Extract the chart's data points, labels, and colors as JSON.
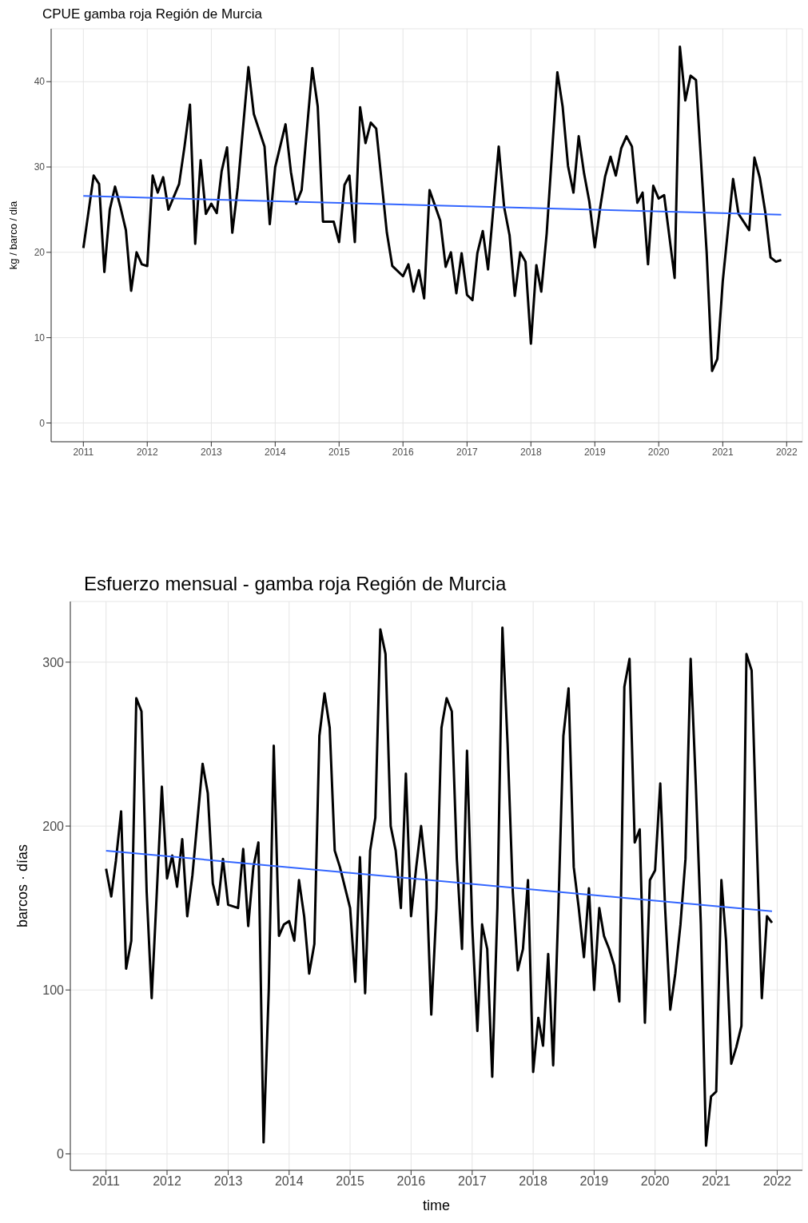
{
  "chart_data": [
    {
      "type": "line",
      "title": "CPUE gamba roja Región de Murcia",
      "ylabel": "kg / barco / dia",
      "xlim": [
        "2010-07",
        "2022-04"
      ],
      "ylim": [
        -2.2,
        46.2
      ],
      "xticks": [
        "2011",
        "2012",
        "2013",
        "2014",
        "2015",
        "2016",
        "2017",
        "2018",
        "2019",
        "2020",
        "2021",
        "2022"
      ],
      "yticks": [
        0,
        10,
        20,
        30,
        40
      ],
      "grid": true,
      "series": [
        {
          "color": "#000000",
          "x": [
            "2011-01",
            "2011-03",
            "2011-04",
            "2011-05",
            "2011-06",
            "2011-07",
            "2011-08",
            "2011-09",
            "2011-10",
            "2011-11",
            "2011-12",
            "2012-01",
            "2012-02",
            "2012-03",
            "2012-04",
            "2012-05",
            "2012-07",
            "2012-08",
            "2012-09",
            "2012-10",
            "2012-11",
            "2012-12",
            "2013-01",
            "2013-02",
            "2013-03",
            "2013-04",
            "2013-05",
            "2013-06",
            "2013-08",
            "2013-09",
            "2013-11",
            "2013-12",
            "2014-01",
            "2014-03",
            "2014-04",
            "2014-05",
            "2014-06",
            "2014-08",
            "2014-09",
            "2014-10",
            "2014-12",
            "2015-01",
            "2015-02",
            "2015-03",
            "2015-04",
            "2015-05",
            "2015-06",
            "2015-07",
            "2015-08",
            "2015-10",
            "2015-11",
            "2016-01",
            "2016-02",
            "2016-03",
            "2016-04",
            "2016-05",
            "2016-06",
            "2016-08",
            "2016-09",
            "2016-10",
            "2016-11",
            "2016-12",
            "2017-01",
            "2017-02",
            "2017-03",
            "2017-04",
            "2017-05",
            "2017-07",
            "2017-08",
            "2017-09",
            "2017-10",
            "2017-11",
            "2017-12",
            "2018-01",
            "2018-02",
            "2018-03",
            "2018-04",
            "2018-06",
            "2018-07",
            "2018-08",
            "2018-09",
            "2018-10",
            "2018-11",
            "2018-12",
            "2019-01",
            "2019-02",
            "2019-03",
            "2019-04",
            "2019-05",
            "2019-06",
            "2019-07",
            "2019-08",
            "2019-09",
            "2019-10",
            "2019-11",
            "2019-12",
            "2020-01",
            "2020-02",
            "2020-04",
            "2020-05",
            "2020-06",
            "2020-07",
            "2020-08",
            "2020-10",
            "2020-11",
            "2020-12",
            "2021-01",
            "2021-03",
            "2021-04",
            "2021-06",
            "2021-07",
            "2021-08",
            "2021-09",
            "2021-10",
            "2021-11",
            "2021-12"
          ],
          "values": [
            20.5,
            29,
            28,
            17.7,
            25,
            27.7,
            25.3,
            22.6,
            15.5,
            20,
            18.6,
            18.4,
            29,
            27,
            28.8,
            25,
            28,
            32.4,
            37.3,
            21,
            30.8,
            24.5,
            25.7,
            24.6,
            29.5,
            32.3,
            22.3,
            27.6,
            41.7,
            36.2,
            32.4,
            23.3,
            30,
            35,
            29.4,
            25.7,
            27.3,
            41.6,
            37.1,
            23.6,
            23.6,
            21.2,
            27.9,
            29,
            21.2,
            37,
            32.8,
            35.2,
            34.5,
            22.3,
            18.4,
            17.2,
            18.6,
            15.4,
            17.9,
            14.6,
            27.3,
            23.7,
            18.3,
            20,
            15.2,
            19.9,
            15,
            14.4,
            19.9,
            22.5,
            18,
            32.4,
            25.3,
            22,
            14.9,
            20,
            18.9,
            9.3,
            18.5,
            15.4,
            22.2,
            41.1,
            37.1,
            30.1,
            27,
            33.6,
            29.2,
            25.9,
            20.6,
            25.3,
            28.9,
            31.2,
            29,
            32.2,
            33.6,
            32.4,
            25.8,
            27,
            18.6,
            27.8,
            26.3,
            26.7,
            17,
            44.1,
            37.8,
            40.7,
            40.2,
            20,
            6.1,
            7.5,
            16.6,
            28.6,
            24.5,
            22.6,
            31.1,
            28.7,
            24.7,
            19.4,
            18.9,
            19.1
          ]
        },
        {
          "type": "line",
          "color": "#3366ff",
          "x": [
            "2011-01",
            "2021-12"
          ],
          "values": [
            26.6,
            24.4
          ]
        }
      ]
    },
    {
      "type": "line",
      "title": "Esfuerzo mensual - gamba roja Región de Murcia",
      "xlabel": "time",
      "ylabel": "barcos · días",
      "xlim": [
        "2010-06",
        "2022-06"
      ],
      "ylim": [
        -10,
        337
      ],
      "xticks": [
        "2011",
        "2012",
        "2013",
        "2014",
        "2015",
        "2016",
        "2017",
        "2018",
        "2019",
        "2020",
        "2021",
        "2022"
      ],
      "yticks": [
        0,
        100,
        200,
        300
      ],
      "grid": true,
      "series": [
        {
          "color": "#000000",
          "x": [
            "2011-01",
            "2011-02",
            "2011-03",
            "2011-04",
            "2011-05",
            "2011-06",
            "2011-07",
            "2011-08",
            "2011-09",
            "2011-10",
            "2011-11",
            "2011-12",
            "2012-01",
            "2012-02",
            "2012-03",
            "2012-04",
            "2012-05",
            "2012-06",
            "2012-08",
            "2012-09",
            "2012-10",
            "2012-11",
            "2012-12",
            "2013-01",
            "2013-03",
            "2013-04",
            "2013-05",
            "2013-06",
            "2013-07",
            "2013-08",
            "2013-09",
            "2013-10",
            "2013-11",
            "2013-12",
            "2014-01",
            "2014-02",
            "2014-03",
            "2014-04",
            "2014-05",
            "2014-06",
            "2014-07",
            "2014-08",
            "2014-09",
            "2014-10",
            "2014-11",
            "2015-01",
            "2015-02",
            "2015-03",
            "2015-04",
            "2015-05",
            "2015-06",
            "2015-07",
            "2015-08",
            "2015-09",
            "2015-10",
            "2015-11",
            "2015-12",
            "2016-01",
            "2016-02",
            "2016-03",
            "2016-04",
            "2016-05",
            "2016-06",
            "2016-07",
            "2016-08",
            "2016-09",
            "2016-10",
            "2016-11",
            "2016-12",
            "2017-01",
            "2017-02",
            "2017-03",
            "2017-04",
            "2017-05",
            "2017-06",
            "2017-07",
            "2017-08",
            "2017-09",
            "2017-10",
            "2017-11",
            "2017-12",
            "2018-01",
            "2018-02",
            "2018-03",
            "2018-04",
            "2018-05",
            "2018-06",
            "2018-07",
            "2018-08",
            "2018-09",
            "2018-10",
            "2018-11",
            "2018-12",
            "2019-01",
            "2019-02",
            "2019-03",
            "2019-04",
            "2019-05",
            "2019-06",
            "2019-07",
            "2019-08",
            "2019-09",
            "2019-10",
            "2019-11",
            "2019-12",
            "2020-01",
            "2020-02",
            "2020-03",
            "2020-04",
            "2020-05",
            "2020-06",
            "2020-07",
            "2020-08",
            "2020-09",
            "2020-10",
            "2020-11",
            "2020-12",
            "2021-01",
            "2021-02",
            "2021-03",
            "2021-04",
            "2021-05",
            "2021-06",
            "2021-07",
            "2021-08",
            "2021-09",
            "2021-10",
            "2021-11",
            "2021-12"
          ],
          "values": [
            174,
            157,
            179,
            209,
            113,
            130,
            278,
            270,
            160,
            95,
            160,
            224,
            168,
            182,
            163,
            192,
            145,
            170,
            238,
            220,
            165,
            152,
            180,
            152,
            150,
            186,
            139,
            175,
            190,
            7,
            100,
            249,
            133,
            140,
            142,
            130,
            167,
            145,
            110,
            128,
            255,
            281,
            260,
            185,
            175,
            150,
            105,
            181,
            98,
            185,
            205,
            320,
            305,
            200,
            185,
            150,
            232,
            145,
            175,
            200,
            170,
            85,
            150,
            260,
            278,
            270,
            180,
            125,
            246,
            140,
            75,
            140,
            125,
            47,
            150,
            321,
            250,
            160,
            112,
            125,
            167,
            50,
            83,
            66,
            122,
            54,
            150,
            255,
            284,
            175,
            150,
            120,
            162,
            100,
            150,
            133,
            125,
            115,
            93,
            285,
            302,
            190,
            198,
            80,
            167,
            173,
            226,
            150,
            88,
            110,
            140,
            180,
            302,
            225,
            140,
            5,
            35,
            38,
            167,
            130,
            55,
            65,
            78,
            305,
            295,
            190,
            95,
            145,
            141
          ]
        },
        {
          "type": "line",
          "color": "#3366ff",
          "x": [
            "2011-01",
            "2021-12"
          ],
          "values": [
            185,
            148
          ]
        }
      ]
    }
  ]
}
